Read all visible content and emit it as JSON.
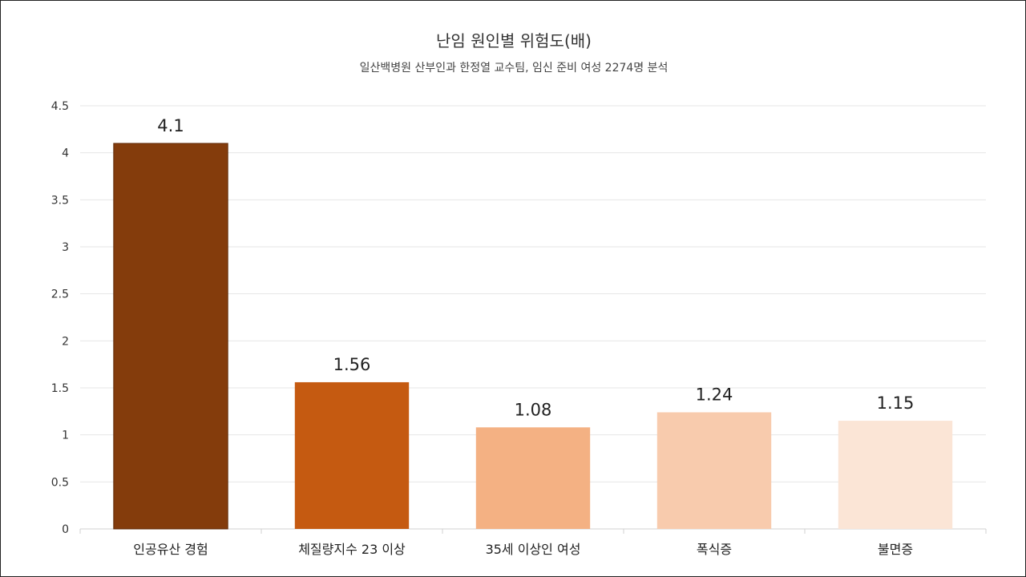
{
  "chart_data": {
    "type": "bar",
    "title": "난임 원인별 위험도(배)",
    "subtitle": "일산백병원 산부인과 한정열 교수팀, 임신 준비 여성 2274명 분석",
    "categories": [
      "인공유산 경험",
      "체질량지수 23 이상",
      "35세 이상인 여성",
      "폭식증",
      "불면증"
    ],
    "values": [
      4.1,
      1.56,
      1.08,
      1.24,
      1.15
    ],
    "value_labels": [
      "4.1",
      "1.56",
      "1.08",
      "1.24",
      "1.15"
    ],
    "bar_colors": [
      "#843C0C",
      "#C55A11",
      "#F4B183",
      "#F8CBAD",
      "#FBE5D6"
    ],
    "ylim": [
      0,
      4.5
    ],
    "yticks": [
      "0",
      "0.5",
      "1",
      "1.5",
      "2",
      "2.5",
      "3",
      "3.5",
      "4",
      "4.5"
    ],
    "grid": true,
    "legend": "none",
    "xlabel": "",
    "ylabel": ""
  }
}
